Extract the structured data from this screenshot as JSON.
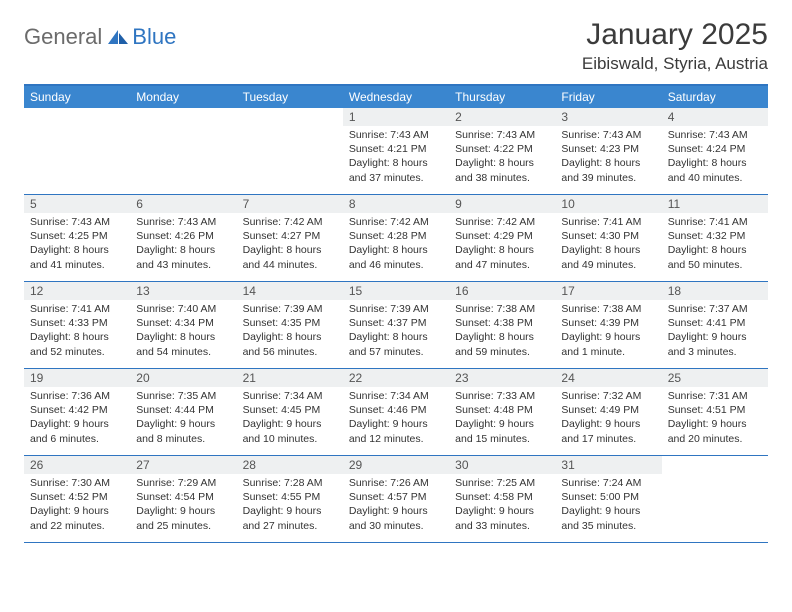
{
  "logo": {
    "part1": "General",
    "part2": "Blue"
  },
  "title": {
    "month": "January 2025",
    "location": "Eibiswald, Styria, Austria"
  },
  "colors": {
    "header_bar": "#3a86cf",
    "rule": "#2f75c1",
    "daynum_bg": "#eef0f1",
    "logo_gray": "#6b6b6b",
    "logo_blue": "#2f75c1"
  },
  "dow": [
    "Sunday",
    "Monday",
    "Tuesday",
    "Wednesday",
    "Thursday",
    "Friday",
    "Saturday"
  ],
  "weeks": [
    [
      null,
      null,
      null,
      {
        "n": "1",
        "sr": "7:43 AM",
        "ss": "4:21 PM",
        "dl": "8 hours and 37 minutes."
      },
      {
        "n": "2",
        "sr": "7:43 AM",
        "ss": "4:22 PM",
        "dl": "8 hours and 38 minutes."
      },
      {
        "n": "3",
        "sr": "7:43 AM",
        "ss": "4:23 PM",
        "dl": "8 hours and 39 minutes."
      },
      {
        "n": "4",
        "sr": "7:43 AM",
        "ss": "4:24 PM",
        "dl": "8 hours and 40 minutes."
      }
    ],
    [
      {
        "n": "5",
        "sr": "7:43 AM",
        "ss": "4:25 PM",
        "dl": "8 hours and 41 minutes."
      },
      {
        "n": "6",
        "sr": "7:43 AM",
        "ss": "4:26 PM",
        "dl": "8 hours and 43 minutes."
      },
      {
        "n": "7",
        "sr": "7:42 AM",
        "ss": "4:27 PM",
        "dl": "8 hours and 44 minutes."
      },
      {
        "n": "8",
        "sr": "7:42 AM",
        "ss": "4:28 PM",
        "dl": "8 hours and 46 minutes."
      },
      {
        "n": "9",
        "sr": "7:42 AM",
        "ss": "4:29 PM",
        "dl": "8 hours and 47 minutes."
      },
      {
        "n": "10",
        "sr": "7:41 AM",
        "ss": "4:30 PM",
        "dl": "8 hours and 49 minutes."
      },
      {
        "n": "11",
        "sr": "7:41 AM",
        "ss": "4:32 PM",
        "dl": "8 hours and 50 minutes."
      }
    ],
    [
      {
        "n": "12",
        "sr": "7:41 AM",
        "ss": "4:33 PM",
        "dl": "8 hours and 52 minutes."
      },
      {
        "n": "13",
        "sr": "7:40 AM",
        "ss": "4:34 PM",
        "dl": "8 hours and 54 minutes."
      },
      {
        "n": "14",
        "sr": "7:39 AM",
        "ss": "4:35 PM",
        "dl": "8 hours and 56 minutes."
      },
      {
        "n": "15",
        "sr": "7:39 AM",
        "ss": "4:37 PM",
        "dl": "8 hours and 57 minutes."
      },
      {
        "n": "16",
        "sr": "7:38 AM",
        "ss": "4:38 PM",
        "dl": "8 hours and 59 minutes."
      },
      {
        "n": "17",
        "sr": "7:38 AM",
        "ss": "4:39 PM",
        "dl": "9 hours and 1 minute."
      },
      {
        "n": "18",
        "sr": "7:37 AM",
        "ss": "4:41 PM",
        "dl": "9 hours and 3 minutes."
      }
    ],
    [
      {
        "n": "19",
        "sr": "7:36 AM",
        "ss": "4:42 PM",
        "dl": "9 hours and 6 minutes."
      },
      {
        "n": "20",
        "sr": "7:35 AM",
        "ss": "4:44 PM",
        "dl": "9 hours and 8 minutes."
      },
      {
        "n": "21",
        "sr": "7:34 AM",
        "ss": "4:45 PM",
        "dl": "9 hours and 10 minutes."
      },
      {
        "n": "22",
        "sr": "7:34 AM",
        "ss": "4:46 PM",
        "dl": "9 hours and 12 minutes."
      },
      {
        "n": "23",
        "sr": "7:33 AM",
        "ss": "4:48 PM",
        "dl": "9 hours and 15 minutes."
      },
      {
        "n": "24",
        "sr": "7:32 AM",
        "ss": "4:49 PM",
        "dl": "9 hours and 17 minutes."
      },
      {
        "n": "25",
        "sr": "7:31 AM",
        "ss": "4:51 PM",
        "dl": "9 hours and 20 minutes."
      }
    ],
    [
      {
        "n": "26",
        "sr": "7:30 AM",
        "ss": "4:52 PM",
        "dl": "9 hours and 22 minutes."
      },
      {
        "n": "27",
        "sr": "7:29 AM",
        "ss": "4:54 PM",
        "dl": "9 hours and 25 minutes."
      },
      {
        "n": "28",
        "sr": "7:28 AM",
        "ss": "4:55 PM",
        "dl": "9 hours and 27 minutes."
      },
      {
        "n": "29",
        "sr": "7:26 AM",
        "ss": "4:57 PM",
        "dl": "9 hours and 30 minutes."
      },
      {
        "n": "30",
        "sr": "7:25 AM",
        "ss": "4:58 PM",
        "dl": "9 hours and 33 minutes."
      },
      {
        "n": "31",
        "sr": "7:24 AM",
        "ss": "5:00 PM",
        "dl": "9 hours and 35 minutes."
      },
      null
    ]
  ],
  "labels": {
    "sunrise": "Sunrise:",
    "sunset": "Sunset:",
    "daylight": "Daylight:"
  }
}
